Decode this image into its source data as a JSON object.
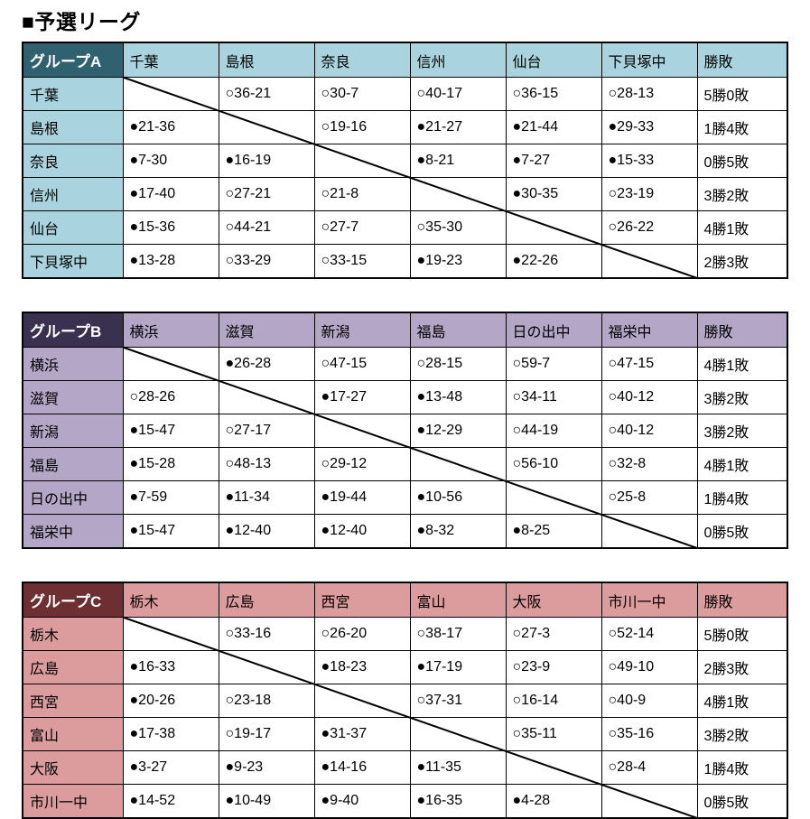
{
  "page": {
    "title": "■予選リーグ"
  },
  "groups": [
    {
      "label": "グループA",
      "record_label": "勝敗",
      "colors": {
        "header_bg": "#2F6170",
        "header_text": "#FFFFFF",
        "team_bg": "#A9D3DE"
      },
      "teams": [
        "千葉",
        "島根",
        "奈良",
        "信州",
        "仙台",
        "下貝塚中"
      ],
      "rows": [
        {
          "team": "千葉",
          "results": [
            null,
            "○36-21",
            "○30-7",
            "○40-17",
            "○36-15",
            "○28-13"
          ],
          "record": "5勝0敗"
        },
        {
          "team": "島根",
          "results": [
            "●21-36",
            null,
            "○19-16",
            "●21-27",
            "●21-44",
            "●29-33"
          ],
          "record": "1勝4敗"
        },
        {
          "team": "奈良",
          "results": [
            "●7-30",
            "●16-19",
            null,
            "●8-21",
            "●7-27",
            "●15-33"
          ],
          "record": "0勝5敗"
        },
        {
          "team": "信州",
          "results": [
            "●17-40",
            "○27-21",
            "○21-8",
            null,
            "●30-35",
            "○23-19"
          ],
          "record": "3勝2敗"
        },
        {
          "team": "仙台",
          "results": [
            "●15-36",
            "○44-21",
            "○27-7",
            "○35-30",
            null,
            "○26-22"
          ],
          "record": "4勝1敗"
        },
        {
          "team": "下貝塚中",
          "results": [
            "●13-28",
            "○33-29",
            "○33-15",
            "●19-23",
            "●22-26",
            null
          ],
          "record": "2勝3敗"
        }
      ]
    },
    {
      "label": "グループB",
      "record_label": "勝敗",
      "colors": {
        "header_bg": "#3A3050",
        "header_text": "#FFFFFF",
        "team_bg": "#B3A6C7"
      },
      "teams": [
        "横浜",
        "滋賀",
        "新潟",
        "福島",
        "日の出中",
        "福栄中"
      ],
      "rows": [
        {
          "team": "横浜",
          "results": [
            null,
            "●26-28",
            "○47-15",
            "○28-15",
            "○59-7",
            "○47-15"
          ],
          "record": "4勝1敗"
        },
        {
          "team": "滋賀",
          "results": [
            "○28-26",
            null,
            "●17-27",
            "●13-48",
            "○34-11",
            "○40-12"
          ],
          "record": "3勝2敗"
        },
        {
          "team": "新潟",
          "results": [
            "●15-47",
            "○27-17",
            null,
            "●12-29",
            "○44-19",
            "○40-12"
          ],
          "record": "3勝2敗"
        },
        {
          "team": "福島",
          "results": [
            "●15-28",
            "○48-13",
            "○29-12",
            null,
            "○56-10",
            "○32-8"
          ],
          "record": "4勝1敗"
        },
        {
          "team": "日の出中",
          "results": [
            "●7-59",
            "●11-34",
            "●19-44",
            "●10-56",
            null,
            "○25-8"
          ],
          "record": "1勝4敗"
        },
        {
          "team": "福栄中",
          "results": [
            "●15-47",
            "●12-40",
            "●12-40",
            "●8-32",
            "●8-25",
            null
          ],
          "record": "0勝5敗"
        }
      ]
    },
    {
      "label": "グループC",
      "record_label": "勝敗",
      "colors": {
        "header_bg": "#6E2F33",
        "header_text": "#FFFFFF",
        "team_bg": "#DC9B9C"
      },
      "teams": [
        "栃木",
        "広島",
        "西宮",
        "富山",
        "大阪",
        "市川一中"
      ],
      "rows": [
        {
          "team": "栃木",
          "results": [
            null,
            "○33-16",
            "○26-20",
            "○38-17",
            "○27-3",
            "○52-14"
          ],
          "record": "5勝0敗"
        },
        {
          "team": "広島",
          "results": [
            "●16-33",
            null,
            "●18-23",
            "●17-19",
            "○23-9",
            "○49-10"
          ],
          "record": "2勝3敗"
        },
        {
          "team": "西宮",
          "results": [
            "●20-26",
            "○23-18",
            null,
            "○37-31",
            "○16-14",
            "○40-9"
          ],
          "record": "4勝1敗"
        },
        {
          "team": "富山",
          "results": [
            "●17-38",
            "○19-17",
            "●31-37",
            null,
            "○35-11",
            "○35-16"
          ],
          "record": "3勝2敗"
        },
        {
          "team": "大阪",
          "results": [
            "●3-27",
            "●9-23",
            "●14-16",
            "●11-35",
            null,
            "○28-4"
          ],
          "record": "1勝4敗"
        },
        {
          "team": "市川一中",
          "results": [
            "●14-52",
            "●10-49",
            "●9-40",
            "●16-35",
            "●4-28",
            null
          ],
          "record": "0勝5敗"
        }
      ]
    }
  ]
}
